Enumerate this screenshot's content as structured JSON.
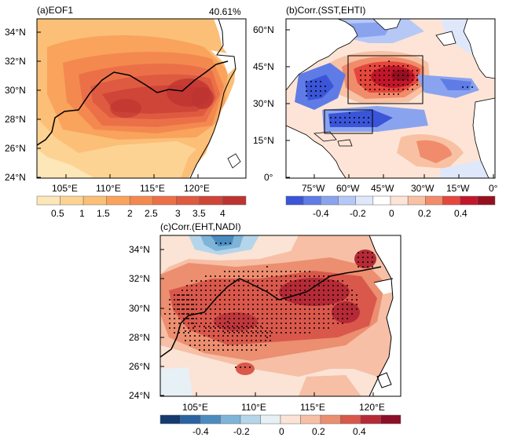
{
  "panel_a": {
    "title": "(a)EOF1",
    "variance": "40.61%",
    "ylabels": [
      "34°N",
      "32°N",
      "30°N",
      "28°N",
      "26°N",
      "24°N"
    ],
    "xlabels": [
      "105°E",
      "110°E",
      "115°E",
      "120°E"
    ],
    "colorbar_labels": [
      "0.5",
      "1",
      "1.5",
      "2",
      "2.5",
      "3",
      "3.5",
      "4"
    ],
    "colors": [
      "#fde7b8",
      "#fdd394",
      "#fcbf77",
      "#f9a35d",
      "#f48950",
      "#eb7048",
      "#de5a40",
      "#cf4537",
      "#bd3331"
    ]
  },
  "panel_b": {
    "title": "(b)Corr.(SST,EHTI)",
    "ylabels": [
      "60°N",
      "45°N",
      "30°N",
      "15°N",
      "0°"
    ],
    "xlabels": [
      "75°W",
      "60°W",
      "45°W",
      "30°W",
      "15°W",
      "0°"
    ],
    "colorbar_labels": [
      "-0.4",
      "-0.2",
      "0",
      "0.2",
      "0.4"
    ],
    "colors": [
      "#3a55d8",
      "#5f7ce6",
      "#8aa3ef",
      "#b6c8f6",
      "#dfe8fb",
      "#ffffff",
      "#fde4d6",
      "#f8c1a3",
      "#f08b6b",
      "#e5473c",
      "#c3162a",
      "#960f1f"
    ]
  },
  "panel_c": {
    "title": "(c)Corr.(EHT,NADI)",
    "ylabels": [
      "34°N",
      "32°N",
      "30°N",
      "28°N",
      "26°N",
      "24°N"
    ],
    "xlabels": [
      "105°E",
      "110°E",
      "115°E",
      "120°E"
    ],
    "colorbar_labels": [
      "-0.4",
      "-0.2",
      "0",
      "0.2",
      "0.4"
    ],
    "colors": [
      "#143a6e",
      "#2a63a1",
      "#4b8cc0",
      "#7eb4d8",
      "#b5d6ea",
      "#e6f0f5",
      "#fbe3d5",
      "#f6bfa6",
      "#ec8e70",
      "#d9584b",
      "#b52a36",
      "#8c1027"
    ]
  }
}
